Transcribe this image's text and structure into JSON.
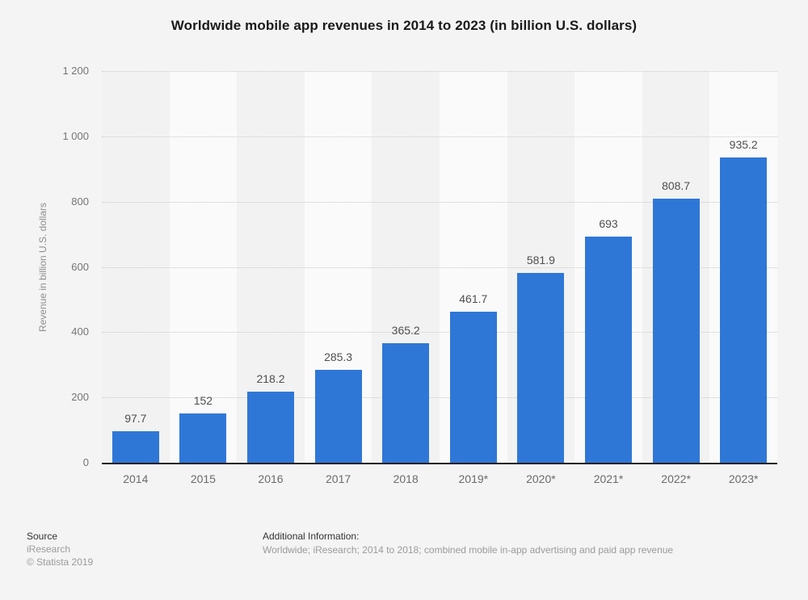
{
  "page": {
    "title": "Worldwide mobile app revenues in 2014 to 2023 (in billion U.S. dollars)"
  },
  "chart_data": {
    "type": "bar",
    "title": "Worldwide mobile app revenues in 2014 to 2023 (in billion U.S. dollars)",
    "categories": [
      "2014",
      "2015",
      "2016",
      "2017",
      "2018",
      "2019*",
      "2020*",
      "2021*",
      "2022*",
      "2023*"
    ],
    "values": [
      97.7,
      152,
      218.2,
      285.3,
      365.2,
      461.7,
      581.9,
      693,
      808.7,
      935.2
    ],
    "value_labels": [
      "97.7",
      "152",
      "218.2",
      "285.3",
      "365.2",
      "461.7",
      "581.9",
      "693",
      "808.7",
      "935.2"
    ],
    "xlabel": "",
    "ylabel": "Revenue in billion U.S. dollars",
    "ylim": [
      0,
      1200
    ],
    "ytick_step": 200,
    "ytick_labels": [
      "0",
      "200",
      "400",
      "600",
      "800",
      "1 000",
      "1 200"
    ],
    "grid": "horizontal-dotted",
    "legend": "none",
    "bar_color": "#2f77d7",
    "stripe_colors": [
      "#f2f2f3",
      "#fafafa"
    ]
  },
  "footer": {
    "source_label": "Source",
    "source_name": "iResearch",
    "copyright": "© Statista 2019",
    "additional_info_label": "Additional Information:",
    "additional_info_text": "Worldwide; iResearch; 2014 to 2018; combined mobile in-app advertising and paid app revenue"
  }
}
